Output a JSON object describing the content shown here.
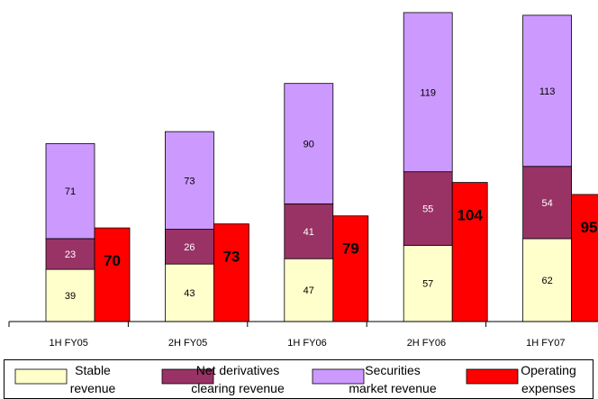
{
  "chart_data": {
    "type": "bar",
    "stacked": true,
    "categories": [
      "1H FY05",
      "2H FY05",
      "1H FY06",
      "2H FY06",
      "1H FY07"
    ],
    "stack_series": [
      {
        "name": "Stable revenue",
        "values": [
          39,
          43,
          47,
          57,
          62
        ],
        "color": "#FFFFCC"
      },
      {
        "name": "Net derivatives clearing revenue",
        "values": [
          23,
          26,
          41,
          55,
          54
        ],
        "color": "#993366"
      },
      {
        "name": "Securities market revenue",
        "values": [
          71,
          73,
          90,
          119,
          113
        ],
        "color": "#CC99FF"
      }
    ],
    "side_series": {
      "name": "Operating expenses",
      "values": [
        70,
        73,
        79,
        104,
        95
      ],
      "color": "#FF0000"
    },
    "legend": [
      {
        "line1": "Stable",
        "line2": "revenue",
        "color": "#FFFFCC"
      },
      {
        "line1": "Net derivatives",
        "line2": "clearing revenue",
        "color": "#993366"
      },
      {
        "line1": "Securities",
        "line2": "market revenue",
        "color": "#CC99FF"
      },
      {
        "line1": "Operating",
        "line2": "expenses",
        "color": "#FF0000"
      }
    ],
    "legend_position": "bottom",
    "grid": false
  }
}
